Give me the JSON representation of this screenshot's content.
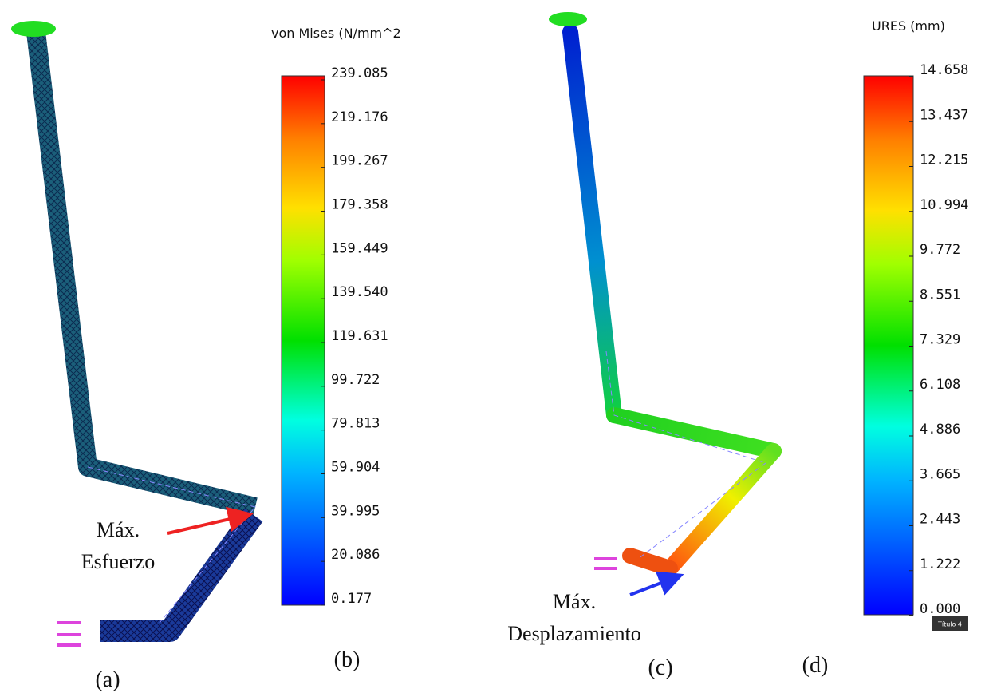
{
  "left": {
    "colorbar": {
      "title": "von Mises (N/mm^2",
      "ticks": [
        "239.085",
        "219.176",
        "199.267",
        "179.358",
        "159.449",
        "139.540",
        "119.631",
        "99.722",
        "79.813",
        "59.904",
        "39.995",
        "20.086",
        "0.177"
      ]
    },
    "annotation": [
      "Máx.",
      "Esfuerzo"
    ],
    "model_label": "(a)",
    "colorbar_label": "(b)"
  },
  "right": {
    "colorbar": {
      "title": "URES (mm)",
      "ticks": [
        "14.658",
        "13.437",
        "12.215",
        "10.994",
        "9.772",
        "8.551",
        "7.329",
        "6.108",
        "4.886",
        "3.665",
        "2.443",
        "1.222",
        "0.000"
      ]
    },
    "annotation": [
      "Máx.",
      "Desplazamiento"
    ],
    "model_label": "(c)",
    "colorbar_label": "(d)",
    "tag": "Título 4"
  }
}
